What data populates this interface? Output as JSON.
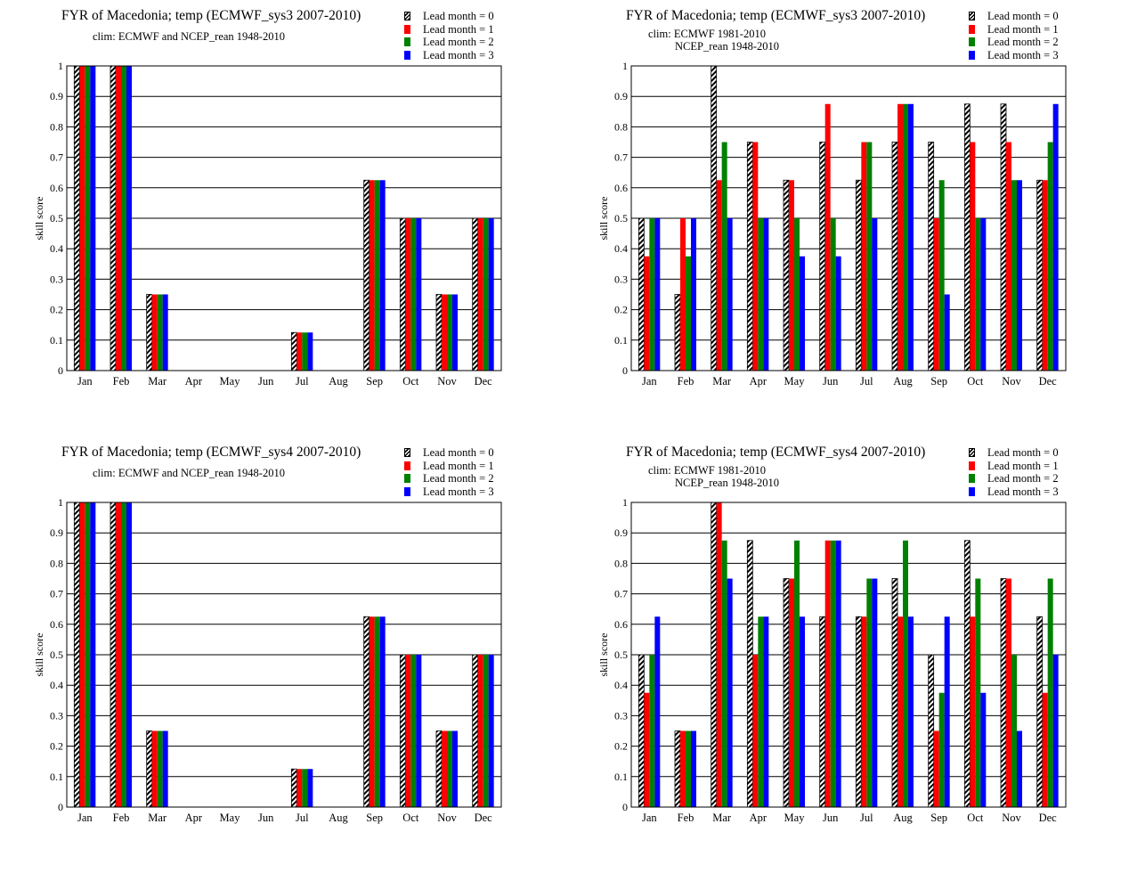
{
  "colors": {
    "lead1": "#ff0000",
    "lead2": "#008000",
    "lead3": "#0000ff",
    "hatch": "#000000"
  },
  "legend": [
    "Lead month = 0",
    "Lead month = 1",
    "Lead month = 2",
    "Lead month = 3"
  ],
  "ylabel": "skill  score",
  "months": [
    "Jan",
    "Feb",
    "Mar",
    "Apr",
    "May",
    "Jun",
    "Jul",
    "Aug",
    "Sep",
    "Oct",
    "Nov",
    "Dec"
  ],
  "yticks": [
    "0",
    "0.1",
    "0.2",
    "0.3",
    "0.4",
    "0.5",
    "0.6",
    "0.7",
    "0.8",
    "0.9",
    "1"
  ],
  "panels": [
    {
      "title": "FYR of Macedonia; temp (ECMWF_sys3 2007-2010)",
      "clim1": "clim: ECMWF and NCEP_rean 1948-2010",
      "clim2": ""
    },
    {
      "title": "FYR of Macedonia; temp (ECMWF_sys3 2007-2010)",
      "clim1": "clim: ECMWF 1981-2010",
      "clim2": "NCEP_rean 1948-2010"
    },
    {
      "title": "FYR of Macedonia; temp (ECMWF_sys4 2007-2010)",
      "clim1": "clim: ECMWF and NCEP_rean 1948-2010",
      "clim2": ""
    },
    {
      "title": "FYR of Macedonia; temp (ECMWF_sys4 2007-2010)",
      "clim1": "clim: ECMWF 1981-2010",
      "clim2": "NCEP_rean 1948-2010"
    }
  ],
  "chart_data": [
    {
      "type": "bar",
      "title": "FYR of Macedonia; temp (ECMWF_sys3 2007-2010)",
      "subtitle": "clim: ECMWF and NCEP_rean 1948-2010",
      "ylabel": "skill  score",
      "ylim": [
        0,
        1
      ],
      "categories": [
        "Jan",
        "Feb",
        "Mar",
        "Apr",
        "May",
        "Jun",
        "Jul",
        "Aug",
        "Sep",
        "Oct",
        "Nov",
        "Dec"
      ],
      "series": [
        {
          "name": "Lead month = 0",
          "values": [
            1,
            1,
            0.25,
            0,
            0,
            0,
            0.125,
            0,
            0.625,
            0.5,
            0.25,
            0.5
          ]
        },
        {
          "name": "Lead month = 1",
          "values": [
            1,
            1,
            0.25,
            0,
            0,
            0,
            0.125,
            0,
            0.625,
            0.5,
            0.25,
            0.5
          ]
        },
        {
          "name": "Lead month = 2",
          "values": [
            1,
            1,
            0.25,
            0,
            0,
            0,
            0.125,
            0,
            0.625,
            0.5,
            0.25,
            0.5
          ]
        },
        {
          "name": "Lead month = 3",
          "values": [
            1,
            1,
            0.25,
            0,
            0,
            0,
            0.125,
            0,
            0.625,
            0.5,
            0.25,
            0.5
          ]
        }
      ]
    },
    {
      "type": "bar",
      "title": "FYR of Macedonia; temp (ECMWF_sys3 2007-2010)",
      "subtitle": "clim: ECMWF 1981-2010 NCEP_rean 1948-2010",
      "ylabel": "skill  score",
      "ylim": [
        0,
        1
      ],
      "categories": [
        "Jan",
        "Feb",
        "Mar",
        "Apr",
        "May",
        "Jun",
        "Jul",
        "Aug",
        "Sep",
        "Oct",
        "Nov",
        "Dec"
      ],
      "series": [
        {
          "name": "Lead month = 0",
          "values": [
            0.5,
            0.25,
            1,
            0.75,
            0.625,
            0.75,
            0.625,
            0.75,
            0.75,
            0.875,
            0.875,
            0.625
          ]
        },
        {
          "name": "Lead month = 1",
          "values": [
            0.375,
            0.5,
            0.625,
            0.75,
            0.625,
            0.875,
            0.75,
            0.875,
            0.5,
            0.75,
            0.75,
            0.625
          ]
        },
        {
          "name": "Lead month = 2",
          "values": [
            0.5,
            0.375,
            0.75,
            0.5,
            0.5,
            0.5,
            0.75,
            0.875,
            0.625,
            0.5,
            0.625,
            0.75
          ]
        },
        {
          "name": "Lead month = 3",
          "values": [
            0.5,
            0.5,
            0.5,
            0.5,
            0.375,
            0.375,
            0.5,
            0.875,
            0.25,
            0.5,
            0.625,
            0.875
          ]
        }
      ]
    },
    {
      "type": "bar",
      "title": "FYR of Macedonia; temp (ECMWF_sys4 2007-2010)",
      "subtitle": "clim: ECMWF and NCEP_rean 1948-2010",
      "ylabel": "skill  score",
      "ylim": [
        0,
        1
      ],
      "categories": [
        "Jan",
        "Feb",
        "Mar",
        "Apr",
        "May",
        "Jun",
        "Jul",
        "Aug",
        "Sep",
        "Oct",
        "Nov",
        "Dec"
      ],
      "series": [
        {
          "name": "Lead month = 0",
          "values": [
            1,
            1,
            0.25,
            0,
            0,
            0,
            0.125,
            0,
            0.625,
            0.5,
            0.25,
            0.5
          ]
        },
        {
          "name": "Lead month = 1",
          "values": [
            1,
            1,
            0.25,
            0,
            0,
            0,
            0.125,
            0,
            0.625,
            0.5,
            0.25,
            0.5
          ]
        },
        {
          "name": "Lead month = 2",
          "values": [
            1,
            1,
            0.25,
            0,
            0,
            0,
            0.125,
            0,
            0.625,
            0.5,
            0.25,
            0.5
          ]
        },
        {
          "name": "Lead month = 3",
          "values": [
            1,
            1,
            0.25,
            0,
            0,
            0,
            0.125,
            0,
            0.625,
            0.5,
            0.25,
            0.5
          ]
        }
      ]
    },
    {
      "type": "bar",
      "title": "FYR of Macedonia; temp (ECMWF_sys4 2007-2010)",
      "subtitle": "clim: ECMWF 1981-2010 NCEP_rean 1948-2010",
      "ylabel": "skill  score",
      "ylim": [
        0,
        1
      ],
      "categories": [
        "Jan",
        "Feb",
        "Mar",
        "Apr",
        "May",
        "Jun",
        "Jul",
        "Aug",
        "Sep",
        "Oct",
        "Nov",
        "Dec"
      ],
      "series": [
        {
          "name": "Lead month = 0",
          "values": [
            0.5,
            0.25,
            1,
            0.875,
            0.75,
            0.625,
            0.625,
            0.75,
            0.5,
            0.875,
            0.75,
            0.625
          ]
        },
        {
          "name": "Lead month = 1",
          "values": [
            0.375,
            0.25,
            1,
            0.5,
            0.75,
            0.875,
            0.625,
            0.625,
            0.25,
            0.625,
            0.75,
            0.375
          ]
        },
        {
          "name": "Lead month = 2",
          "values": [
            0.5,
            0.25,
            0.875,
            0.625,
            0.875,
            0.875,
            0.75,
            0.875,
            0.375,
            0.75,
            0.5,
            0.75
          ]
        },
        {
          "name": "Lead month = 3",
          "values": [
            0.625,
            0.25,
            0.75,
            0.625,
            0.625,
            0.875,
            0.75,
            0.625,
            0.625,
            0.375,
            0.25,
            0.5
          ]
        }
      ]
    }
  ]
}
